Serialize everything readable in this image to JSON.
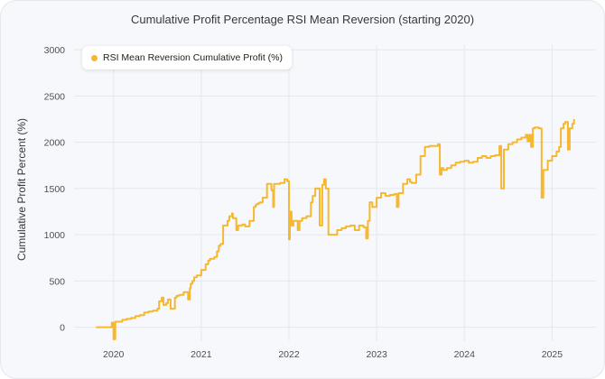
{
  "chart_data": {
    "type": "line",
    "title": "Cumulative Profit Percentage RSI Mean Reversion (starting 2020)",
    "xlabel": "",
    "ylabel": "Cumulative Profit Percent (%)",
    "xlim": [
      2019.55,
      2025.5
    ],
    "ylim": [
      -150,
      3050
    ],
    "x_ticks": [
      2020,
      2021,
      2022,
      2023,
      2024,
      2025
    ],
    "x_tick_labels": [
      "2020",
      "2021",
      "2022",
      "2023",
      "2024",
      "2025"
    ],
    "y_ticks": [
      0,
      500,
      1000,
      1500,
      2000,
      2500,
      3000
    ],
    "y_tick_labels": [
      "0",
      "500",
      "1000",
      "1500",
      "2000",
      "2500",
      "3000"
    ],
    "grid": true,
    "legend_placement": "top-left",
    "series": [
      {
        "name": "RSI Mean Reversion Cumulative Profit (%)",
        "color": "#f5b82e",
        "x": [
          2019.8,
          2019.97,
          2019.98,
          2020.0,
          2020.02,
          2020.03,
          2020.05,
          2020.1,
          2020.15,
          2020.2,
          2020.25,
          2020.3,
          2020.35,
          2020.4,
          2020.45,
          2020.5,
          2020.52,
          2020.55,
          2020.57,
          2020.6,
          2020.62,
          2020.65,
          2020.7,
          2020.72,
          2020.75,
          2020.8,
          2020.85,
          2020.87,
          2020.88,
          2020.9,
          2020.92,
          2020.95,
          2021.0,
          2021.05,
          2021.08,
          2021.1,
          2021.15,
          2021.18,
          2021.2,
          2021.22,
          2021.25,
          2021.3,
          2021.32,
          2021.35,
          2021.36,
          2021.4,
          2021.42,
          2021.45,
          2021.47,
          2021.5,
          2021.55,
          2021.6,
          2021.62,
          2021.63,
          2021.65,
          2021.67,
          2021.7,
          2021.75,
          2021.8,
          2021.82,
          2021.83,
          2021.85,
          2021.9,
          2021.95,
          2021.98,
          2022.0,
          2022.01,
          2022.03,
          2022.05,
          2022.1,
          2022.12,
          2022.15,
          2022.2,
          2022.25,
          2022.27,
          2022.3,
          2022.35,
          2022.38,
          2022.4,
          2022.42,
          2022.45,
          2022.5,
          2022.55,
          2022.6,
          2022.65,
          2022.7,
          2022.75,
          2022.8,
          2022.85,
          2022.88,
          2022.9,
          2022.92,
          2022.95,
          2023.0,
          2023.05,
          2023.1,
          2023.15,
          2023.2,
          2023.23,
          2023.25,
          2023.3,
          2023.35,
          2023.38,
          2023.4,
          2023.45,
          2023.5,
          2023.55,
          2023.6,
          2023.7,
          2023.72,
          2023.74,
          2023.76,
          2023.8,
          2023.85,
          2023.9,
          2023.95,
          2024.0,
          2024.05,
          2024.1,
          2024.15,
          2024.2,
          2024.25,
          2024.3,
          2024.35,
          2024.4,
          2024.42,
          2024.45,
          2024.5,
          2024.55,
          2024.6,
          2024.65,
          2024.7,
          2024.72,
          2024.74,
          2024.76,
          2024.78,
          2024.8,
          2024.85,
          2024.88,
          2024.9,
          2024.95,
          2025.0,
          2025.05,
          2025.08,
          2025.1,
          2025.13,
          2025.15,
          2025.18,
          2025.2,
          2025.23,
          2025.25
        ],
        "y": [
          0,
          0,
          50,
          -130,
          60,
          60,
          60,
          80,
          90,
          100,
          120,
          130,
          160,
          170,
          180,
          200,
          280,
          320,
          240,
          260,
          300,
          200,
          320,
          340,
          350,
          380,
          300,
          420,
          470,
          500,
          540,
          560,
          620,
          680,
          720,
          740,
          760,
          820,
          880,
          900,
          1100,
          1150,
          1200,
          1230,
          1180,
          1050,
          1100,
          1100,
          1110,
          1090,
          1150,
          1300,
          1320,
          1330,
          1340,
          1350,
          1400,
          1550,
          1480,
          1300,
          1550,
          1550,
          1560,
          1600,
          1580,
          950,
          1250,
          1100,
          1150,
          1050,
          1150,
          1180,
          1200,
          1350,
          1420,
          1500,
          1100,
          1540,
          1600,
          1500,
          1000,
          1000,
          1050,
          1070,
          1090,
          1100,
          1050,
          1100,
          1080,
          960,
          1150,
          1350,
          1300,
          1400,
          1450,
          1420,
          1430,
          1440,
          1300,
          1450,
          1550,
          1600,
          1570,
          1560,
          1650,
          1850,
          1950,
          1960,
          1980,
          1650,
          1720,
          1700,
          1720,
          1750,
          1780,
          1790,
          1800,
          1780,
          1790,
          1830,
          1850,
          1830,
          1850,
          1860,
          1960,
          1500,
          1920,
          1980,
          2000,
          2030,
          2050,
          2080,
          2010,
          2080,
          1950,
          2150,
          2160,
          2150,
          1400,
          1700,
          1800,
          1850,
          1900,
          1950,
          2150,
          2200,
          2220,
          1920,
          2150,
          2200,
          2250
        ]
      }
    ]
  }
}
